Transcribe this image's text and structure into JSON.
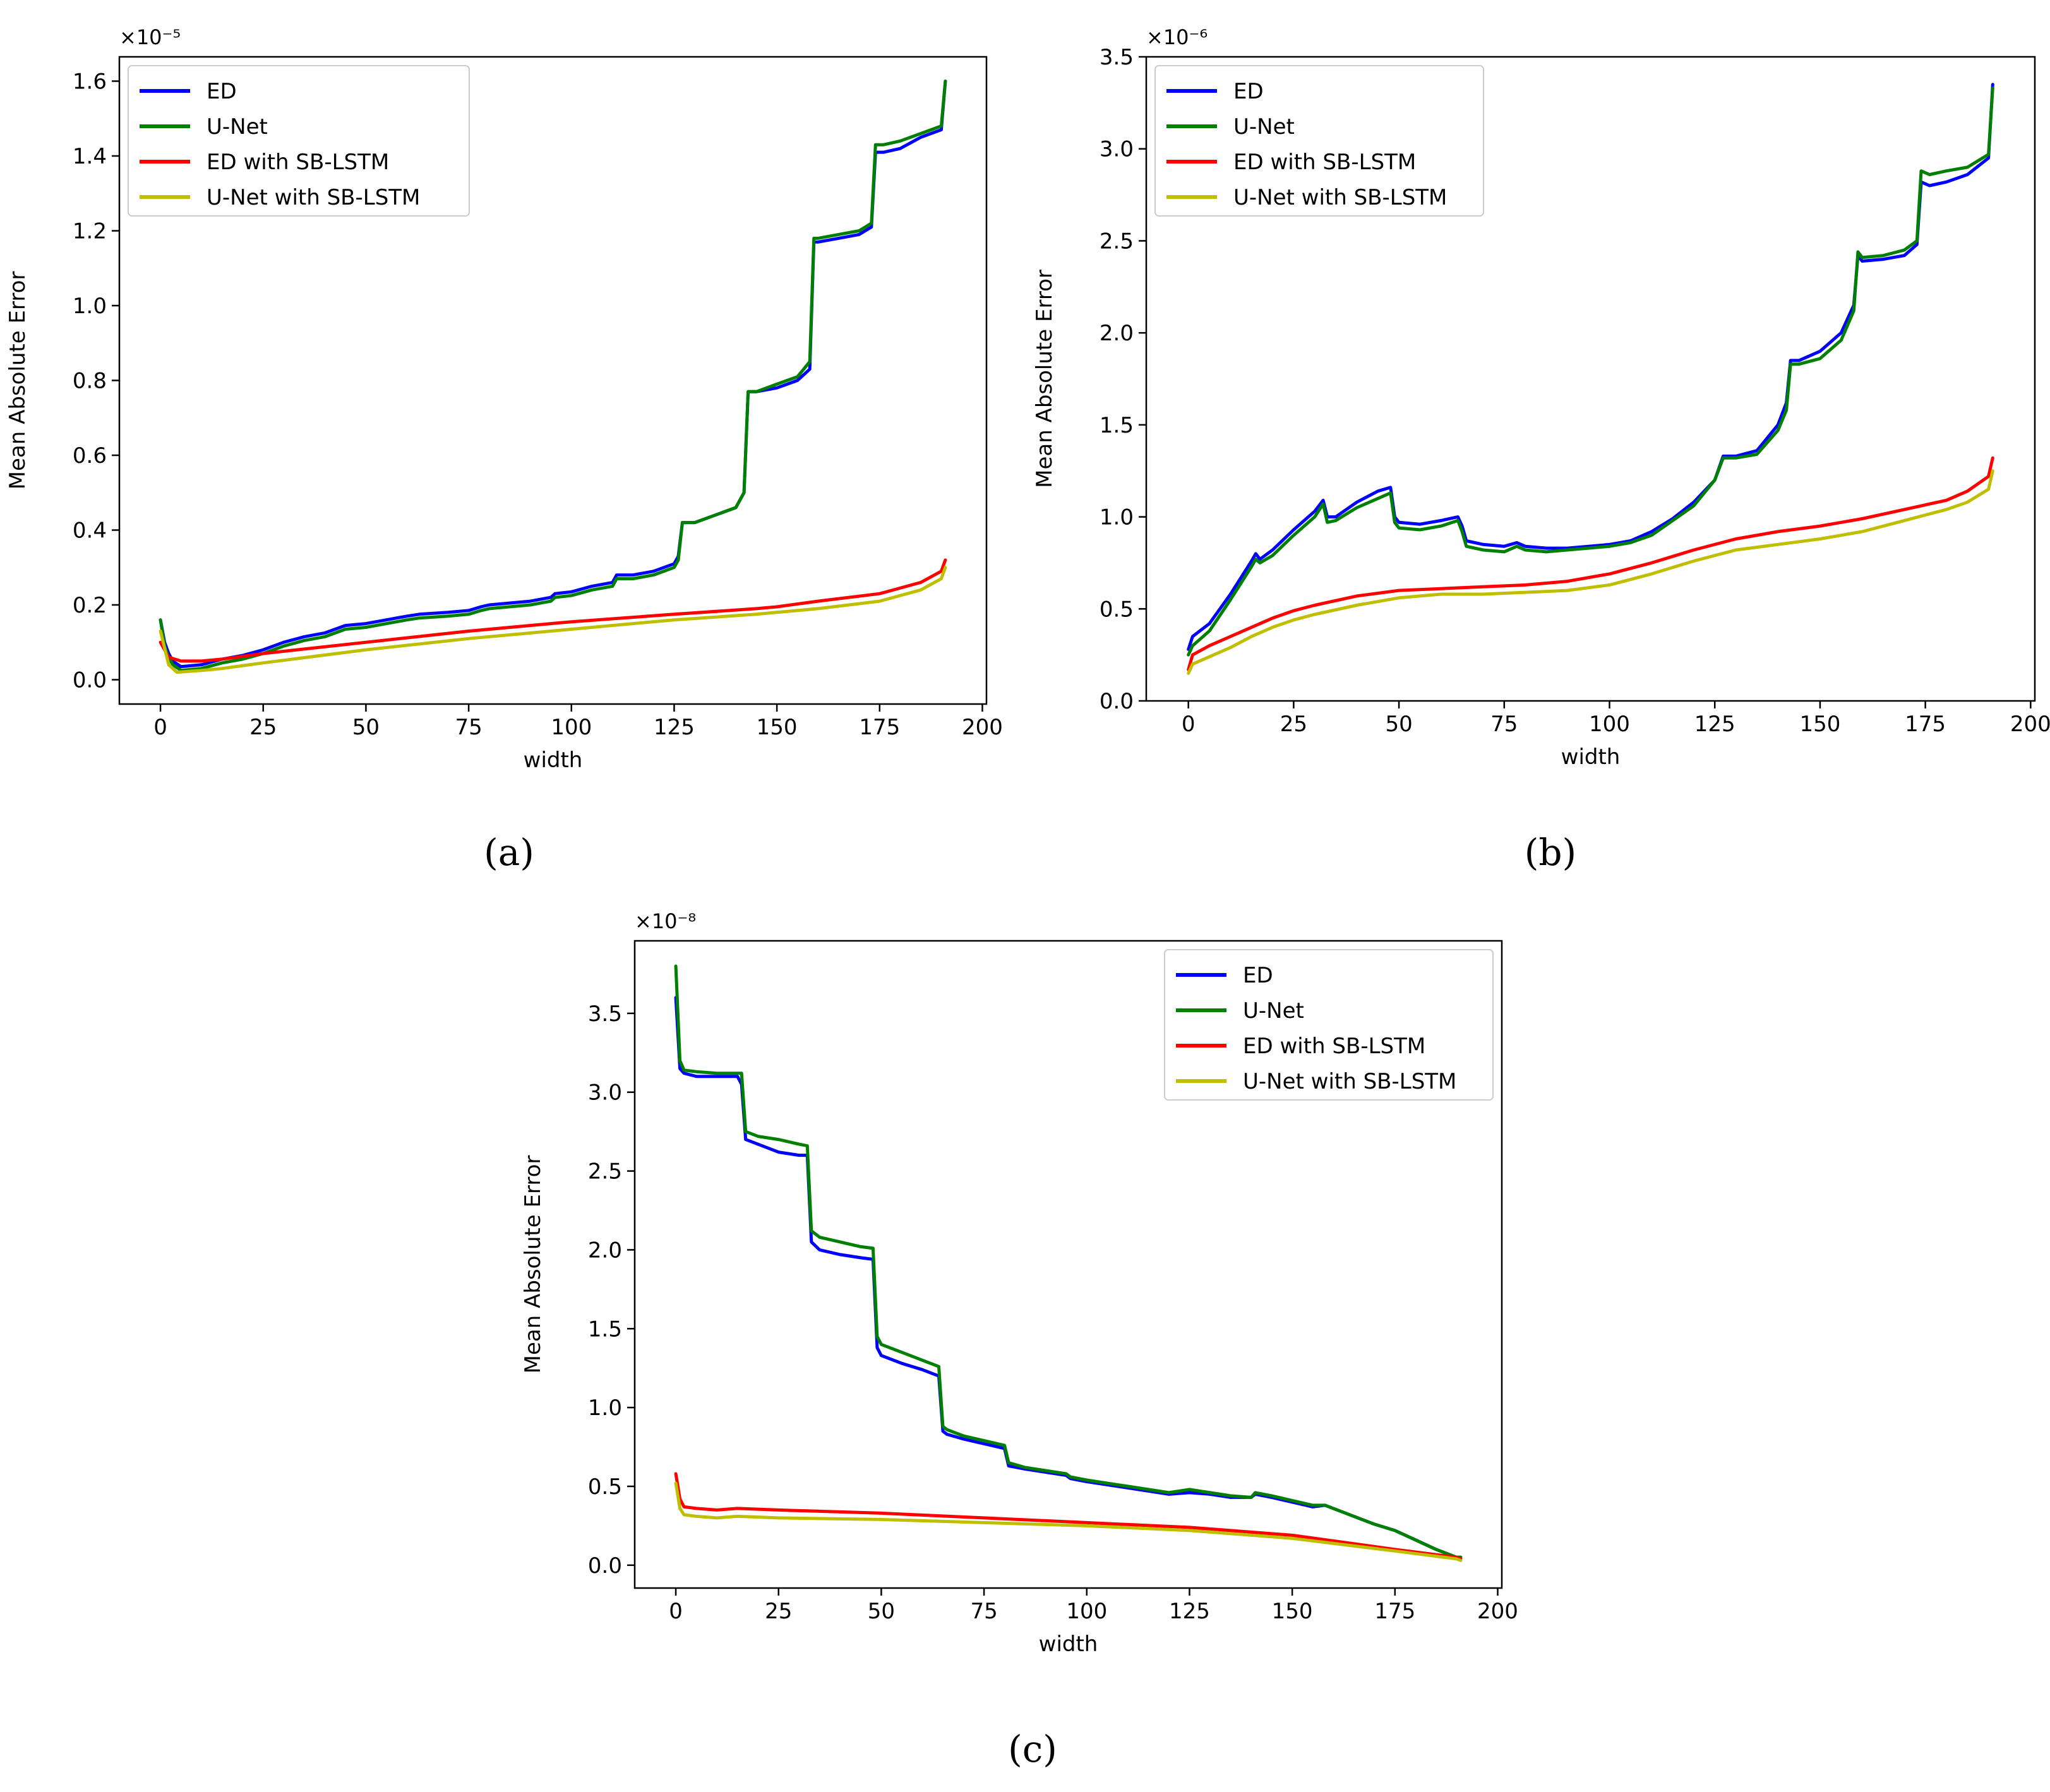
{
  "figure": {
    "captions": [
      "(a)",
      "(b)",
      "(c)"
    ],
    "legend_labels": [
      "ED",
      "U-Net",
      "ED with SB-LSTM",
      "U-Net with SB-LSTM"
    ],
    "colors": {
      "ED": "#0000ff",
      "U-Net": "#008000",
      "ED with SB-LSTM": "#ff0000",
      "U-Net with SB-LSTM": "#bfbf00"
    }
  },
  "chart_data": [
    {
      "type": "line",
      "caption": "(a)",
      "xlabel": "width",
      "ylabel": "Mean Absolute Error",
      "offset_text": "×10⁻⁵",
      "xlim": [
        -10,
        201
      ],
      "ylim": [
        -0.065,
        1.665
      ],
      "xticks": [
        0,
        25,
        50,
        75,
        100,
        125,
        150,
        175,
        200
      ],
      "yticks": [
        0.0,
        0.2,
        0.4,
        0.6,
        0.8,
        1.0,
        1.2,
        1.4,
        1.6
      ],
      "ytick_labels": [
        "0.0",
        "0.2",
        "0.4",
        "0.6",
        "0.8",
        "1.0",
        "1.2",
        "1.4",
        "1.6"
      ],
      "legend_position": "top-left",
      "grid": false,
      "series": [
        {
          "name": "ED",
          "x": [
            0,
            1,
            2,
            3,
            5,
            10,
            15,
            20,
            25,
            30,
            35,
            40,
            45,
            50,
            55,
            60,
            63,
            70,
            75,
            78,
            80,
            90,
            95,
            96,
            100,
            105,
            110,
            111,
            115,
            120,
            125,
            126,
            127,
            130,
            135,
            140,
            142,
            143,
            145,
            150,
            155,
            158,
            159,
            160,
            165,
            170,
            173,
            174,
            176,
            180,
            185,
            190,
            191
          ],
          "y": [
            0.16,
            0.1,
            0.07,
            0.05,
            0.035,
            0.04,
            0.055,
            0.065,
            0.08,
            0.1,
            0.115,
            0.125,
            0.145,
            0.15,
            0.16,
            0.17,
            0.175,
            0.18,
            0.185,
            0.195,
            0.2,
            0.21,
            0.22,
            0.23,
            0.235,
            0.25,
            0.26,
            0.28,
            0.28,
            0.29,
            0.31,
            0.33,
            0.42,
            0.42,
            0.44,
            0.46,
            0.5,
            0.77,
            0.77,
            0.78,
            0.8,
            0.83,
            1.17,
            1.17,
            1.18,
            1.19,
            1.21,
            1.41,
            1.41,
            1.42,
            1.45,
            1.47,
            1.6
          ]
        },
        {
          "name": "U-Net",
          "x": [
            0,
            1,
            2,
            3,
            5,
            10,
            15,
            20,
            25,
            30,
            35,
            40,
            45,
            50,
            55,
            60,
            63,
            70,
            75,
            78,
            80,
            90,
            95,
            96,
            100,
            105,
            110,
            111,
            115,
            120,
            125,
            126,
            127,
            130,
            135,
            140,
            142,
            143,
            145,
            150,
            155,
            158,
            159,
            160,
            165,
            170,
            173,
            174,
            176,
            180,
            185,
            190,
            191
          ],
          "y": [
            0.16,
            0.09,
            0.06,
            0.04,
            0.025,
            0.03,
            0.045,
            0.055,
            0.07,
            0.09,
            0.105,
            0.115,
            0.135,
            0.14,
            0.15,
            0.16,
            0.165,
            0.17,
            0.175,
            0.185,
            0.19,
            0.2,
            0.21,
            0.22,
            0.225,
            0.24,
            0.25,
            0.27,
            0.27,
            0.28,
            0.3,
            0.32,
            0.42,
            0.42,
            0.44,
            0.46,
            0.5,
            0.77,
            0.77,
            0.79,
            0.81,
            0.85,
            1.18,
            1.18,
            1.19,
            1.2,
            1.22,
            1.43,
            1.43,
            1.44,
            1.46,
            1.48,
            1.6
          ]
        },
        {
          "name": "ED with SB-LSTM",
          "x": [
            0,
            2,
            5,
            10,
            15,
            25,
            50,
            75,
            100,
            125,
            145,
            150,
            160,
            175,
            185,
            190,
            191
          ],
          "y": [
            0.1,
            0.06,
            0.05,
            0.05,
            0.055,
            0.07,
            0.1,
            0.13,
            0.155,
            0.175,
            0.19,
            0.195,
            0.21,
            0.23,
            0.26,
            0.29,
            0.32
          ]
        },
        {
          "name": "U-Net with SB-LSTM",
          "x": [
            0,
            2,
            4,
            10,
            15,
            25,
            50,
            75,
            100,
            125,
            145,
            150,
            160,
            175,
            185,
            190,
            191
          ],
          "y": [
            0.13,
            0.04,
            0.02,
            0.025,
            0.03,
            0.045,
            0.08,
            0.11,
            0.135,
            0.16,
            0.175,
            0.18,
            0.19,
            0.21,
            0.24,
            0.27,
            0.3
          ]
        }
      ]
    },
    {
      "type": "line",
      "caption": "(b)",
      "xlabel": "width",
      "ylabel": "Mean Absolute Error",
      "offset_text": "×10⁻⁶",
      "xlim": [
        -10,
        201
      ],
      "ylim": [
        0.0,
        3.5
      ],
      "xticks": [
        0,
        25,
        50,
        75,
        100,
        125,
        150,
        175,
        200
      ],
      "yticks": [
        0.0,
        0.5,
        1.0,
        1.5,
        2.0,
        2.5,
        3.0,
        3.5
      ],
      "ytick_labels": [
        "0.0",
        "0.5",
        "1.0",
        "1.5",
        "2.0",
        "2.5",
        "3.0",
        "3.5"
      ],
      "legend_position": "top-left",
      "grid": false,
      "series": [
        {
          "name": "ED",
          "x": [
            0,
            1,
            5,
            10,
            15,
            16,
            17,
            20,
            25,
            30,
            32,
            33,
            35,
            40,
            45,
            48,
            49,
            50,
            55,
            60,
            64,
            65,
            66,
            70,
            75,
            78,
            80,
            85,
            90,
            95,
            100,
            105,
            110,
            115,
            120,
            125,
            127,
            130,
            135,
            140,
            142,
            143,
            145,
            150,
            155,
            158,
            159,
            160,
            165,
            170,
            173,
            174,
            176,
            180,
            185,
            190,
            191
          ],
          "y": [
            0.28,
            0.35,
            0.42,
            0.58,
            0.76,
            0.8,
            0.77,
            0.82,
            0.93,
            1.03,
            1.09,
            1.0,
            1.0,
            1.08,
            1.14,
            1.16,
            1.0,
            0.97,
            0.96,
            0.98,
            1.0,
            0.95,
            0.87,
            0.85,
            0.84,
            0.86,
            0.84,
            0.83,
            0.83,
            0.84,
            0.85,
            0.87,
            0.92,
            0.99,
            1.08,
            1.2,
            1.33,
            1.33,
            1.36,
            1.5,
            1.62,
            1.85,
            1.85,
            1.9,
            2.0,
            2.15,
            2.42,
            2.39,
            2.4,
            2.42,
            2.48,
            2.82,
            2.8,
            2.82,
            2.86,
            2.95,
            3.35
          ]
        },
        {
          "name": "U-Net",
          "x": [
            0,
            1,
            5,
            10,
            15,
            16,
            17,
            20,
            25,
            30,
            32,
            33,
            35,
            40,
            45,
            48,
            49,
            50,
            55,
            60,
            64,
            65,
            66,
            70,
            75,
            78,
            80,
            85,
            90,
            95,
            100,
            105,
            110,
            115,
            120,
            125,
            127,
            130,
            135,
            140,
            142,
            143,
            145,
            150,
            155,
            158,
            159,
            160,
            165,
            170,
            173,
            174,
            176,
            180,
            185,
            190,
            191
          ],
          "y": [
            0.25,
            0.3,
            0.38,
            0.55,
            0.73,
            0.77,
            0.75,
            0.79,
            0.9,
            1.0,
            1.07,
            0.97,
            0.98,
            1.05,
            1.1,
            1.13,
            0.97,
            0.94,
            0.93,
            0.95,
            0.98,
            0.92,
            0.84,
            0.82,
            0.81,
            0.84,
            0.82,
            0.81,
            0.82,
            0.83,
            0.84,
            0.86,
            0.9,
            0.98,
            1.06,
            1.2,
            1.32,
            1.32,
            1.34,
            1.47,
            1.58,
            1.83,
            1.83,
            1.86,
            1.96,
            2.12,
            2.44,
            2.41,
            2.42,
            2.45,
            2.5,
            2.88,
            2.86,
            2.88,
            2.9,
            2.97,
            3.33
          ]
        },
        {
          "name": "ED with SB-LSTM",
          "x": [
            0,
            1,
            5,
            10,
            15,
            20,
            25,
            30,
            40,
            50,
            60,
            70,
            80,
            90,
            100,
            110,
            120,
            130,
            140,
            150,
            160,
            170,
            180,
            185,
            190,
            191
          ],
          "y": [
            0.17,
            0.25,
            0.3,
            0.35,
            0.4,
            0.45,
            0.49,
            0.52,
            0.57,
            0.6,
            0.61,
            0.62,
            0.63,
            0.65,
            0.69,
            0.75,
            0.82,
            0.88,
            0.92,
            0.95,
            0.99,
            1.04,
            1.09,
            1.14,
            1.22,
            1.32
          ]
        },
        {
          "name": "U-Net with SB-LSTM",
          "x": [
            0,
            1,
            5,
            10,
            15,
            20,
            25,
            30,
            40,
            50,
            60,
            70,
            80,
            90,
            100,
            110,
            120,
            130,
            140,
            150,
            160,
            170,
            180,
            185,
            190,
            191
          ],
          "y": [
            0.15,
            0.2,
            0.24,
            0.29,
            0.35,
            0.4,
            0.44,
            0.47,
            0.52,
            0.56,
            0.58,
            0.58,
            0.59,
            0.6,
            0.63,
            0.69,
            0.76,
            0.82,
            0.85,
            0.88,
            0.92,
            0.98,
            1.04,
            1.08,
            1.15,
            1.25
          ]
        }
      ]
    },
    {
      "type": "line",
      "caption": "(c)",
      "xlabel": "width",
      "ylabel": "Mean Absolute Error",
      "offset_text": "×10⁻⁸",
      "xlim": [
        -10,
        201
      ],
      "ylim": [
        -0.145,
        3.96
      ],
      "xticks": [
        0,
        25,
        50,
        75,
        100,
        125,
        150,
        175,
        200
      ],
      "yticks": [
        0.0,
        0.5,
        1.0,
        1.5,
        2.0,
        2.5,
        3.0,
        3.5
      ],
      "ytick_labels": [
        "0.0",
        "0.5",
        "1.0",
        "1.5",
        "2.0",
        "2.5",
        "3.0",
        "3.5"
      ],
      "legend_position": "top-right",
      "grid": false,
      "series": [
        {
          "name": "ED",
          "x": [
            0,
            1,
            2,
            5,
            10,
            15,
            16,
            17,
            20,
            25,
            30,
            32,
            33,
            35,
            40,
            45,
            48,
            49,
            50,
            55,
            60,
            64,
            65,
            66,
            70,
            75,
            80,
            81,
            85,
            90,
            95,
            96,
            100,
            110,
            120,
            125,
            130,
            135,
            140,
            141,
            145,
            150,
            155,
            158,
            160,
            165,
            170,
            175,
            180,
            185,
            190,
            191
          ],
          "y": [
            3.6,
            3.15,
            3.12,
            3.1,
            3.1,
            3.1,
            3.05,
            2.7,
            2.67,
            2.62,
            2.6,
            2.6,
            2.05,
            2.0,
            1.97,
            1.95,
            1.94,
            1.38,
            1.33,
            1.28,
            1.24,
            1.2,
            0.85,
            0.83,
            0.8,
            0.77,
            0.74,
            0.63,
            0.61,
            0.59,
            0.57,
            0.55,
            0.53,
            0.49,
            0.45,
            0.46,
            0.45,
            0.43,
            0.43,
            0.45,
            0.43,
            0.4,
            0.37,
            0.38,
            0.36,
            0.31,
            0.26,
            0.22,
            0.16,
            0.1,
            0.05,
            0.05
          ]
        },
        {
          "name": "U-Net",
          "x": [
            0,
            1,
            2,
            5,
            10,
            15,
            16,
            17,
            20,
            25,
            30,
            32,
            33,
            35,
            40,
            45,
            48,
            49,
            50,
            55,
            60,
            64,
            65,
            66,
            70,
            75,
            80,
            81,
            85,
            90,
            95,
            96,
            100,
            110,
            120,
            125,
            130,
            135,
            140,
            141,
            145,
            150,
            155,
            158,
            160,
            165,
            170,
            175,
            180,
            185,
            190,
            191
          ],
          "y": [
            3.8,
            3.2,
            3.14,
            3.13,
            3.12,
            3.12,
            3.12,
            2.75,
            2.72,
            2.7,
            2.67,
            2.66,
            2.12,
            2.08,
            2.05,
            2.02,
            2.01,
            1.45,
            1.4,
            1.35,
            1.3,
            1.26,
            0.88,
            0.86,
            0.82,
            0.79,
            0.76,
            0.65,
            0.62,
            0.6,
            0.58,
            0.56,
            0.54,
            0.5,
            0.46,
            0.48,
            0.46,
            0.44,
            0.43,
            0.46,
            0.44,
            0.41,
            0.38,
            0.38,
            0.36,
            0.31,
            0.26,
            0.22,
            0.16,
            0.1,
            0.05,
            0.05
          ]
        },
        {
          "name": "ED with SB-LSTM",
          "x": [
            0,
            1,
            2,
            5,
            10,
            15,
            25,
            50,
            75,
            100,
            125,
            150,
            175,
            190,
            191
          ],
          "y": [
            0.58,
            0.42,
            0.37,
            0.36,
            0.35,
            0.36,
            0.35,
            0.33,
            0.3,
            0.27,
            0.24,
            0.19,
            0.1,
            0.05,
            0.04
          ]
        },
        {
          "name": "U-Net with SB-LSTM",
          "x": [
            0,
            1,
            2,
            5,
            10,
            15,
            25,
            50,
            75,
            100,
            125,
            150,
            175,
            190,
            191
          ],
          "y": [
            0.52,
            0.36,
            0.32,
            0.31,
            0.3,
            0.31,
            0.3,
            0.29,
            0.27,
            0.25,
            0.22,
            0.17,
            0.09,
            0.04,
            0.03
          ]
        }
      ]
    }
  ]
}
